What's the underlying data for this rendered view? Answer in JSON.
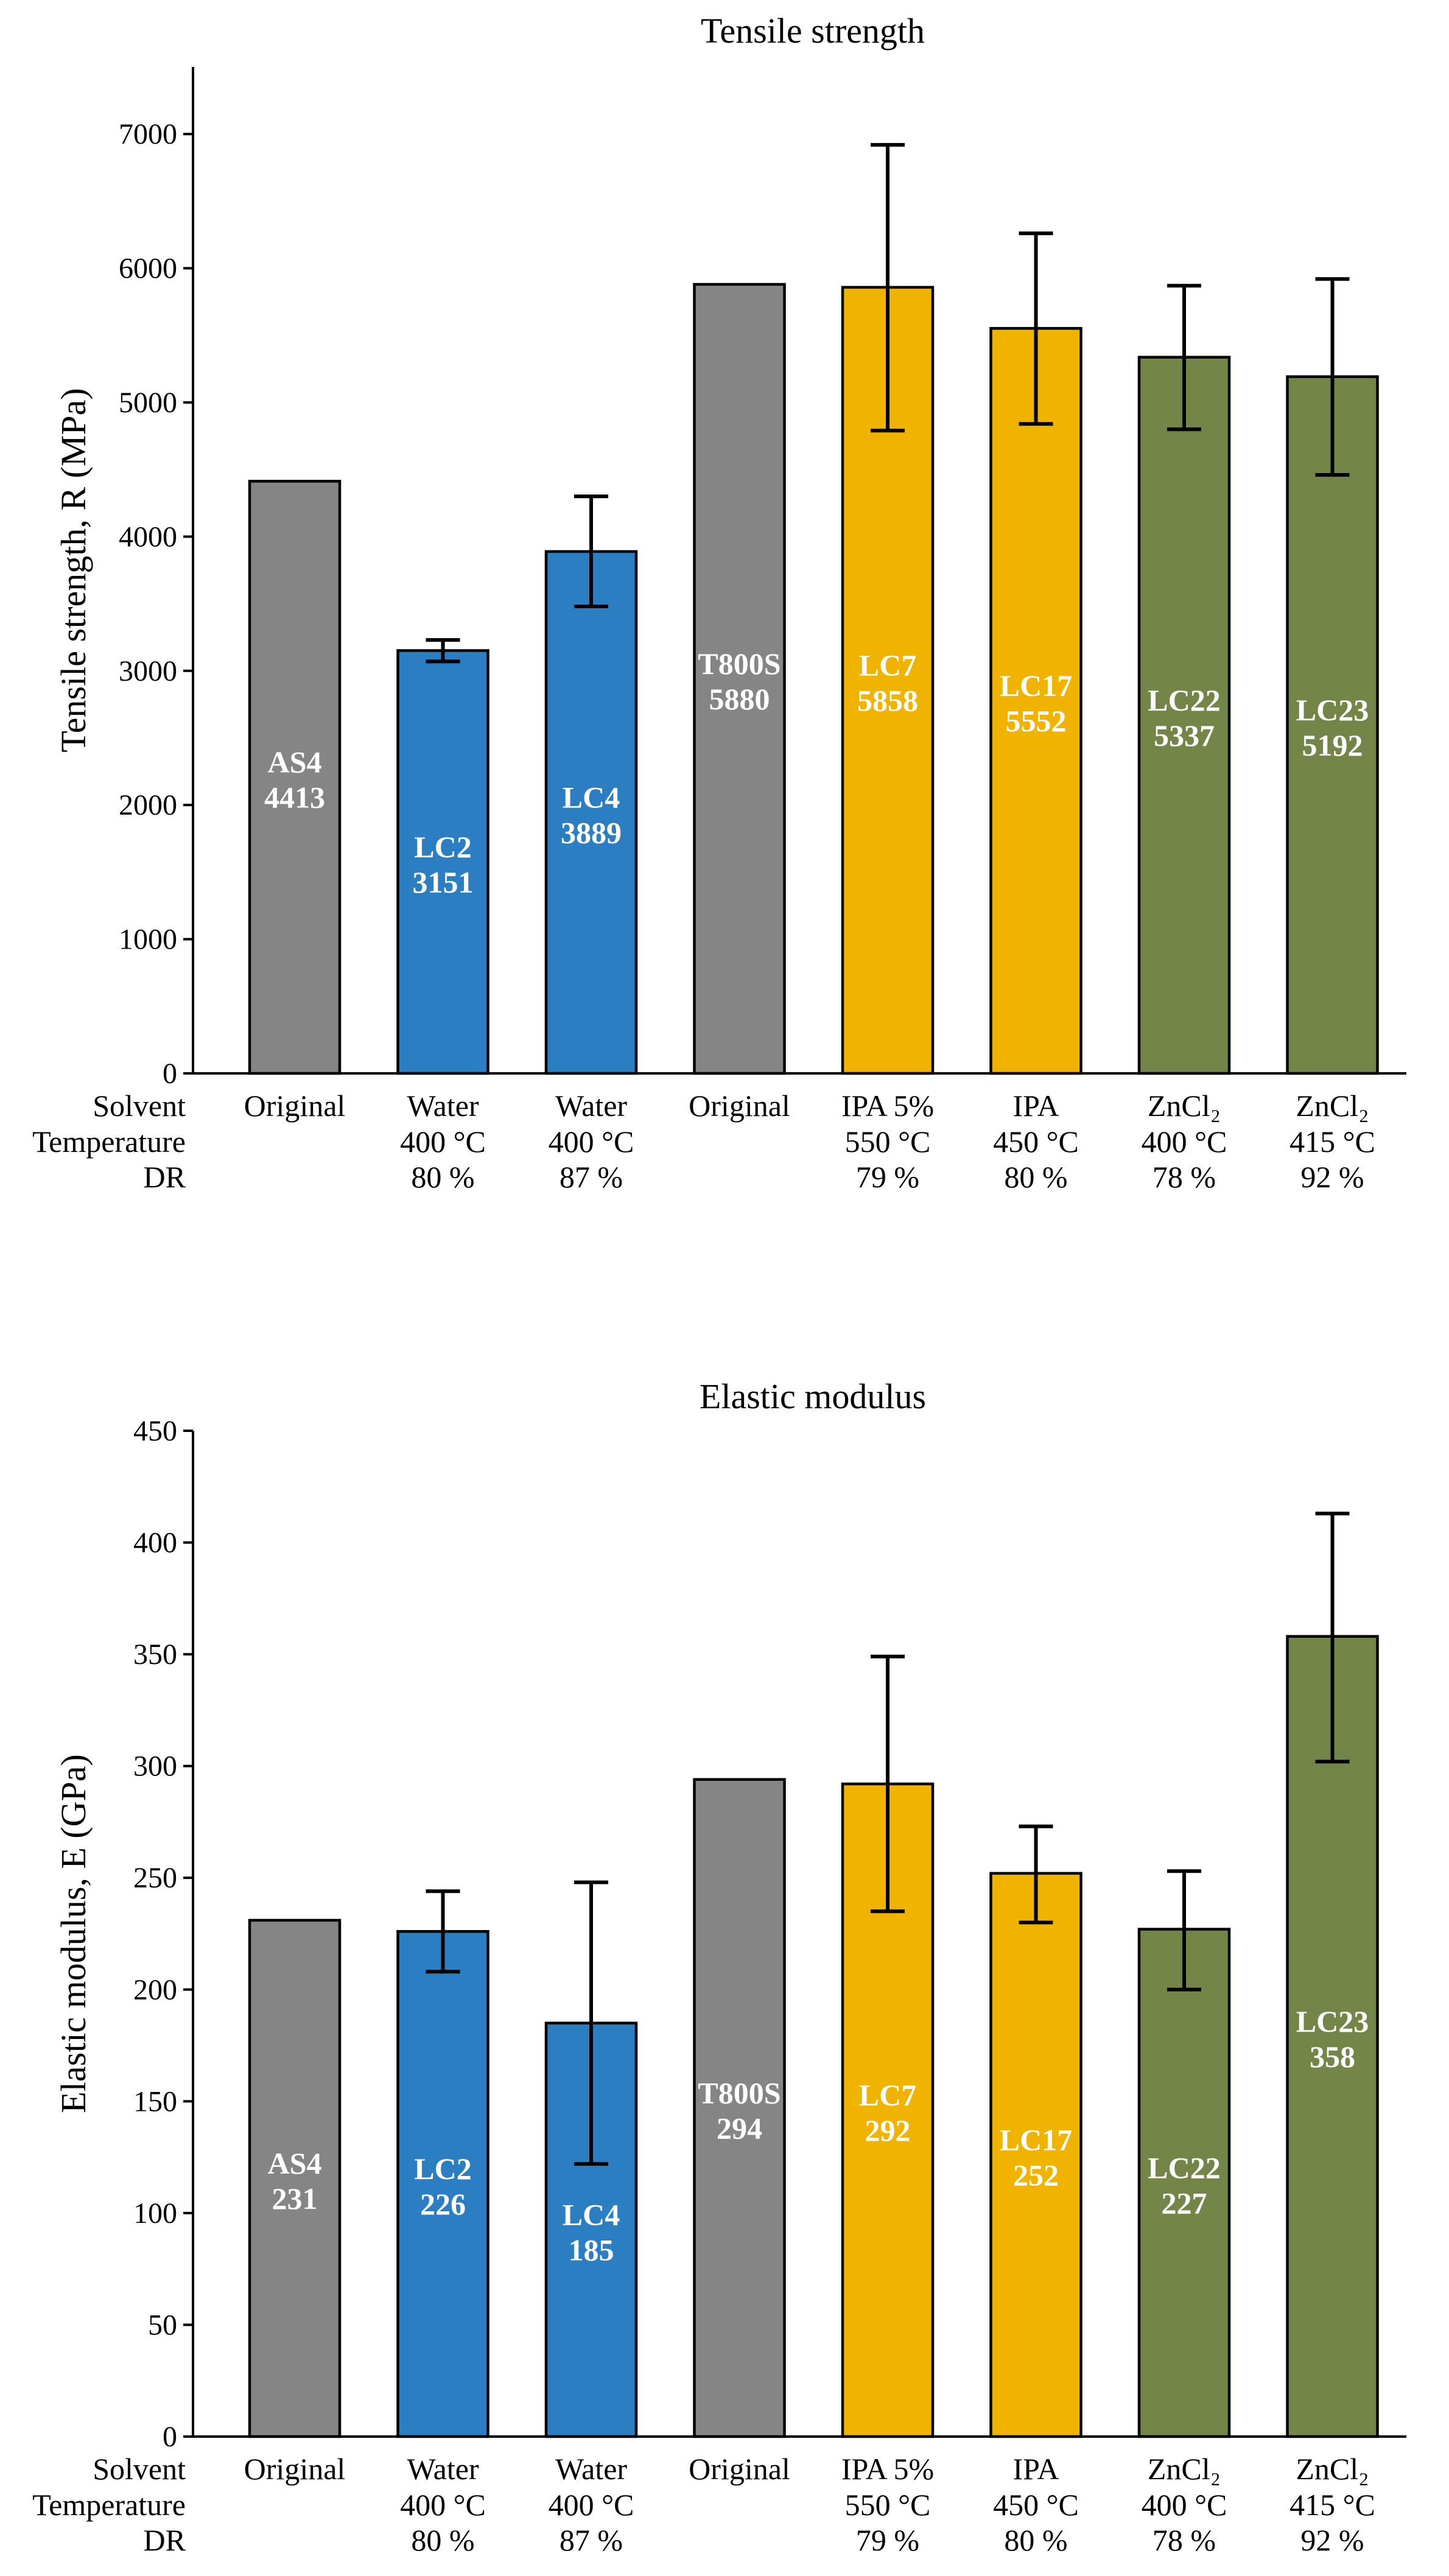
{
  "chart_data": [
    {
      "type": "bar",
      "title": "Tensile strength",
      "ylabel": "Tensile strength, R (MPa)",
      "ylim": [
        0,
        7500
      ],
      "yticks": [
        0,
        1000,
        2000,
        3000,
        4000,
        5000,
        6000,
        7000
      ],
      "row_labels": [
        "Solvent",
        "Temperature",
        "DR"
      ],
      "categories": [
        {
          "solvent": "Original",
          "temperature": "",
          "dr": ""
        },
        {
          "solvent": "Water",
          "temperature": "400 °C",
          "dr": "80 %"
        },
        {
          "solvent": "Water",
          "temperature": "400 °C",
          "dr": "87 %"
        },
        {
          "solvent": "Original",
          "temperature": "",
          "dr": ""
        },
        {
          "solvent": "IPA 5%",
          "temperature": "550 °C",
          "dr": "79 %"
        },
        {
          "solvent": "IPA",
          "temperature": "450 °C",
          "dr": "80 %"
        },
        {
          "solvent": "ZnCl₂",
          "temperature": "400 °C",
          "dr": "78 %"
        },
        {
          "solvent": "ZnCl₂",
          "temperature": "415 °C",
          "dr": "92 %"
        }
      ],
      "bars": [
        {
          "name": "AS4",
          "value": 4413,
          "err": null,
          "color": "#858585"
        },
        {
          "name": "LC2",
          "value": 3151,
          "err": [
            3070,
            3230
          ],
          "color": "#2b7ec2"
        },
        {
          "name": "LC4",
          "value": 3889,
          "err": [
            3480,
            4300
          ],
          "color": "#2b7ec2"
        },
        {
          "name": "T800S",
          "value": 5880,
          "err": null,
          "color": "#858585"
        },
        {
          "name": "LC7",
          "value": 5858,
          "err": [
            4790,
            6920
          ],
          "color": "#f0b400"
        },
        {
          "name": "LC17",
          "value": 5552,
          "err": [
            4840,
            6260
          ],
          "color": "#f0b400"
        },
        {
          "name": "LC22",
          "value": 5337,
          "err": [
            4800,
            5870
          ],
          "color": "#738648"
        },
        {
          "name": "LC23",
          "value": 5192,
          "err": [
            4460,
            5920
          ],
          "color": "#738648"
        }
      ]
    },
    {
      "type": "bar",
      "title": "Elastic modulus",
      "ylabel": "Elastic modulus, E (GPa)",
      "ylim": [
        0,
        450
      ],
      "yticks": [
        0,
        50,
        100,
        150,
        200,
        250,
        300,
        350,
        400,
        450
      ],
      "row_labels": [
        "Solvent",
        "Temperature",
        "DR"
      ],
      "categories": [
        {
          "solvent": "Original",
          "temperature": "",
          "dr": ""
        },
        {
          "solvent": "Water",
          "temperature": "400 °C",
          "dr": "80 %"
        },
        {
          "solvent": "Water",
          "temperature": "400 °C",
          "dr": "87 %"
        },
        {
          "solvent": "Original",
          "temperature": "",
          "dr": ""
        },
        {
          "solvent": "IPA 5%",
          "temperature": "550 °C",
          "dr": "79 %"
        },
        {
          "solvent": "IPA",
          "temperature": "450 °C",
          "dr": "80 %"
        },
        {
          "solvent": "ZnCl₂",
          "temperature": "400 °C",
          "dr": "78 %"
        },
        {
          "solvent": "ZnCl₂",
          "temperature": "415 °C",
          "dr": "92 %"
        }
      ],
      "bars": [
        {
          "name": "AS4",
          "value": 231,
          "err": null,
          "color": "#858585"
        },
        {
          "name": "LC2",
          "value": 226,
          "err": [
            208,
            244
          ],
          "color": "#2b7ec2"
        },
        {
          "name": "LC4",
          "value": 185,
          "err": [
            122,
            248
          ],
          "color": "#2b7ec2"
        },
        {
          "name": "T800S",
          "value": 294,
          "err": null,
          "color": "#858585"
        },
        {
          "name": "LC7",
          "value": 292,
          "err": [
            235,
            349
          ],
          "color": "#f0b400"
        },
        {
          "name": "LC17",
          "value": 252,
          "err": [
            230,
            273
          ],
          "color": "#f0b400"
        },
        {
          "name": "LC22",
          "value": 227,
          "err": [
            200,
            253
          ],
          "color": "#738648"
        },
        {
          "name": "LC23",
          "value": 358,
          "err": [
            302,
            413
          ],
          "color": "#738648"
        }
      ]
    }
  ]
}
